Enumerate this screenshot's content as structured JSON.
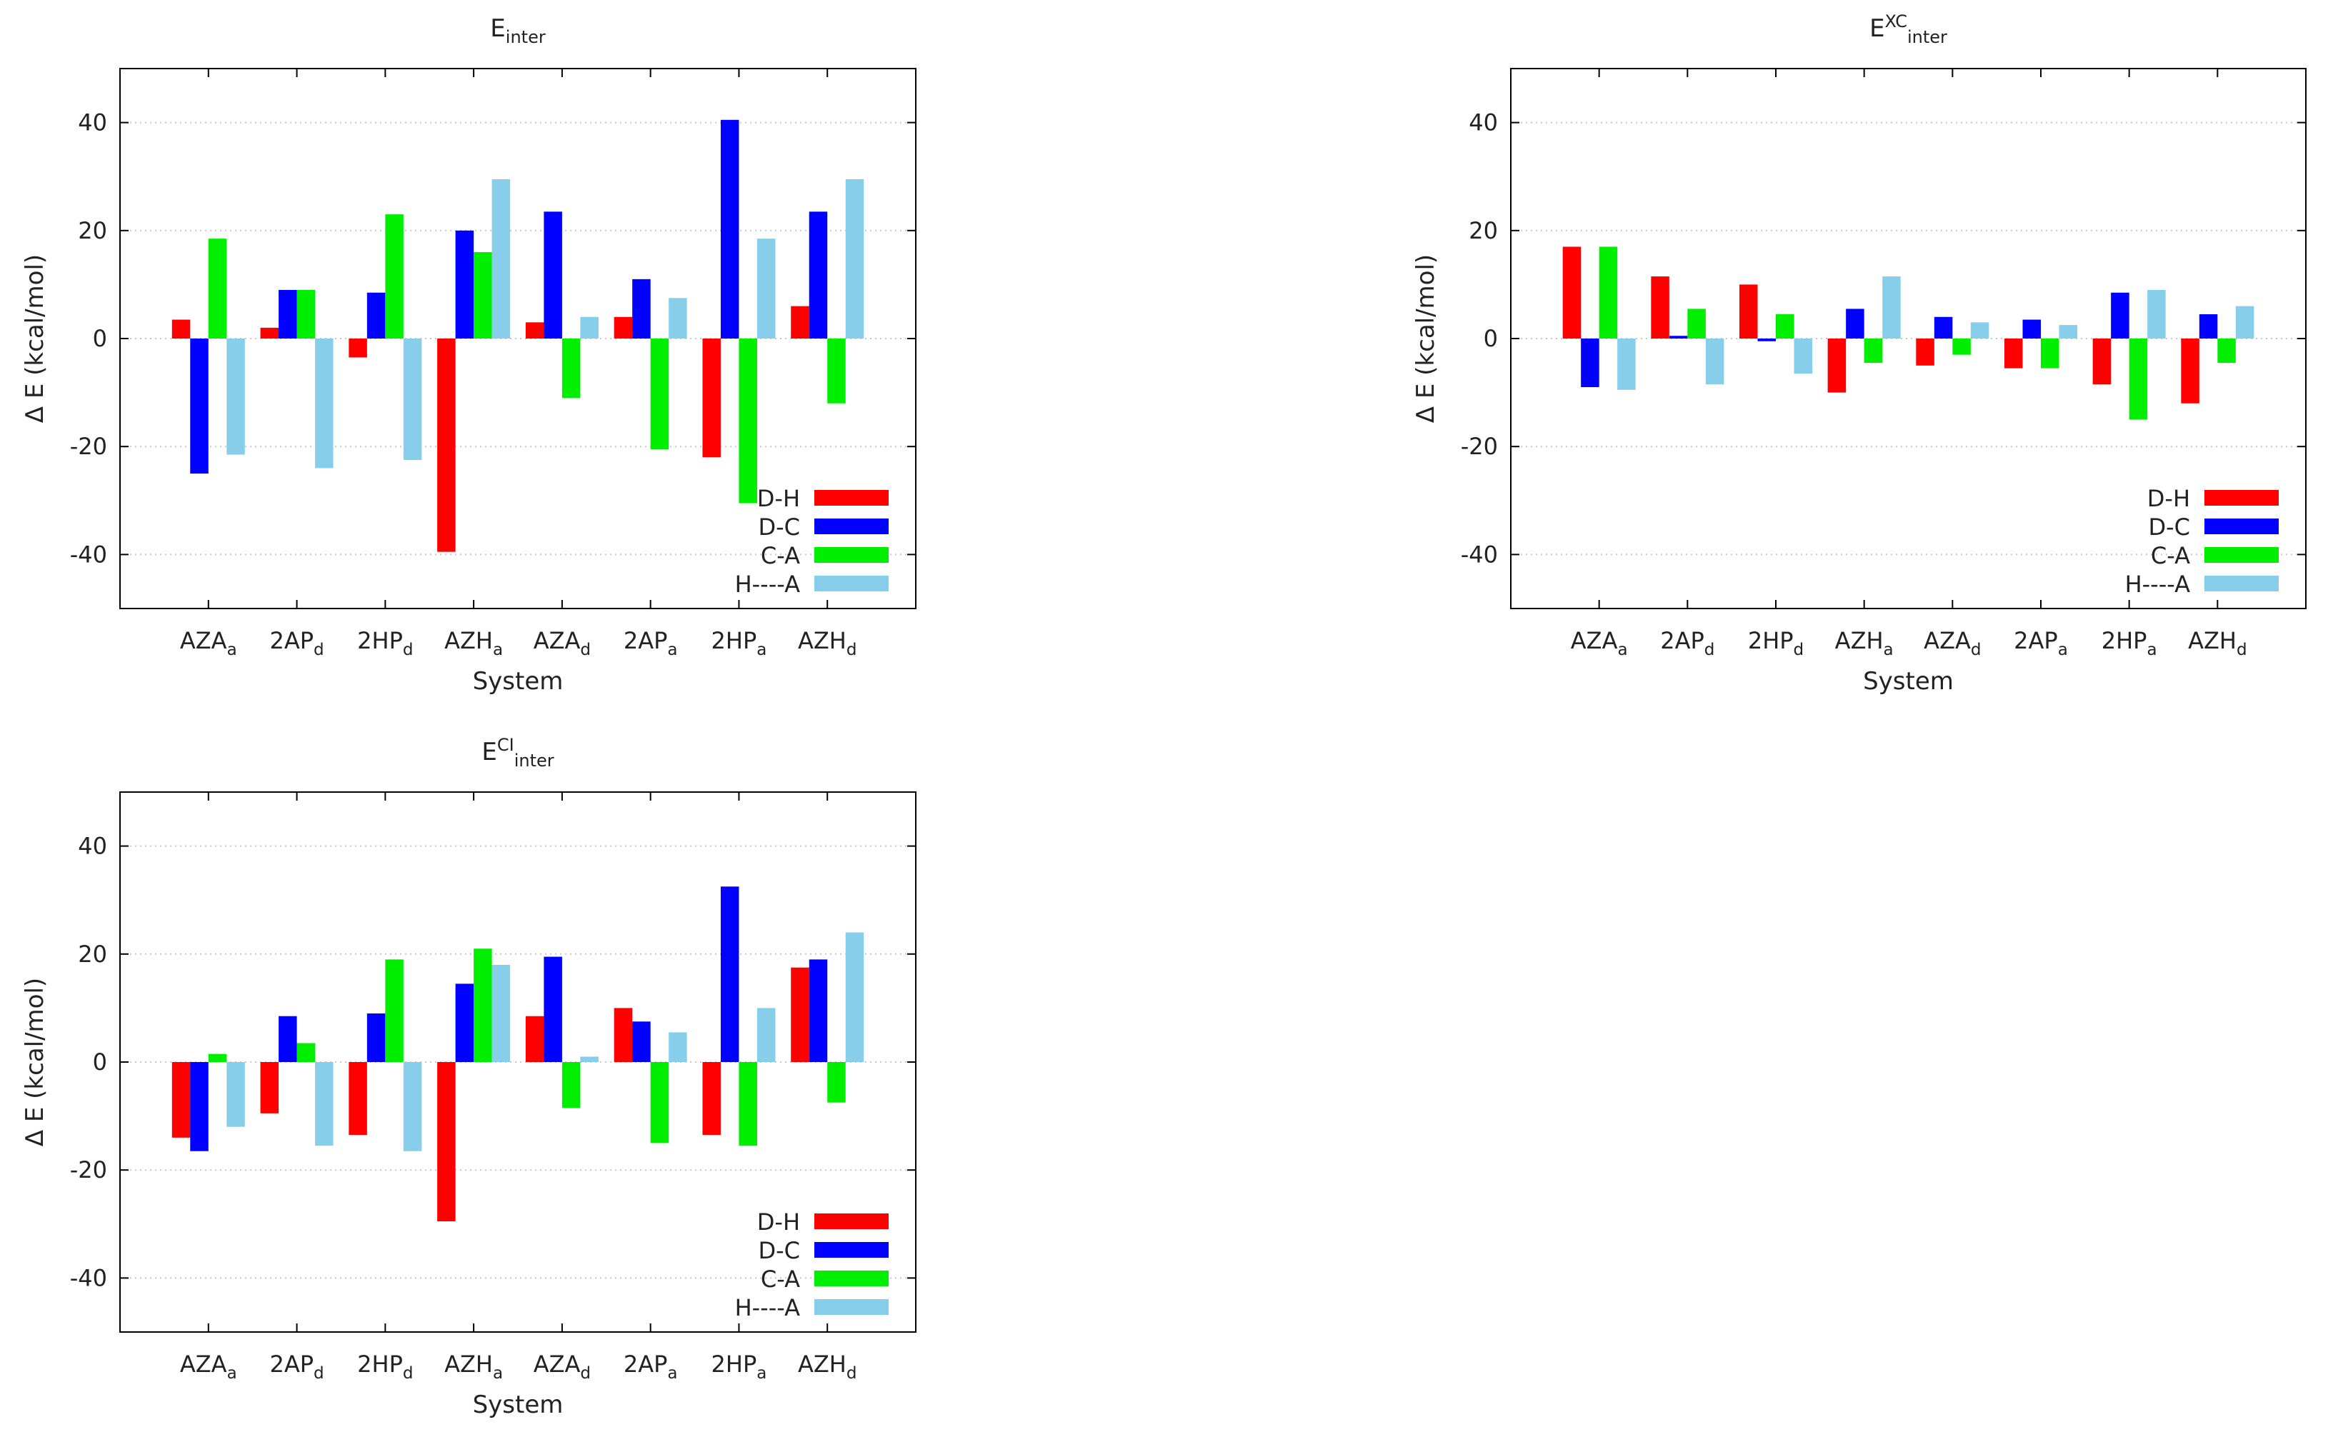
{
  "chart_data": [
    {
      "type": "bar",
      "title": {
        "main": "E",
        "sup": "",
        "sub": "inter"
      },
      "xlabel": "System",
      "ylabel": "Δ E (kcal/mol)",
      "ylim": [
        -50,
        50
      ],
      "yticks": [
        -40,
        -20,
        0,
        20,
        40
      ],
      "grid": true,
      "legend_position": "bottom-right",
      "categories": [
        {
          "main": "AZA",
          "sub": "a"
        },
        {
          "main": "2AP",
          "sub": "d"
        },
        {
          "main": "2HP",
          "sub": "d"
        },
        {
          "main": "AZH",
          "sub": "a"
        },
        {
          "main": "AZA",
          "sub": "d"
        },
        {
          "main": "2AP",
          "sub": "a"
        },
        {
          "main": "2HP",
          "sub": "a"
        },
        {
          "main": "AZH",
          "sub": "d"
        }
      ],
      "series": [
        {
          "name": "D-H",
          "color": "#ff0000",
          "values": [
            3.5,
            2.0,
            -3.5,
            -39.5,
            3.0,
            4.0,
            -22.0,
            6.0
          ]
        },
        {
          "name": "D-C",
          "color": "#0000ff",
          "values": [
            -25.0,
            9.0,
            8.5,
            20.0,
            23.5,
            11.0,
            40.5,
            23.5
          ]
        },
        {
          "name": "C-A",
          "color": "#00ee00",
          "values": [
            18.5,
            9.0,
            23.0,
            16.0,
            -11.0,
            -20.5,
            -30.5,
            -12.0
          ]
        },
        {
          "name": "H----A",
          "color": "#87ceeb",
          "values": [
            -21.5,
            -24.0,
            -22.5,
            29.5,
            4.0,
            7.5,
            18.5,
            29.5
          ]
        }
      ]
    },
    {
      "type": "bar",
      "title": {
        "main": "E",
        "sup": "XC",
        "sub": "inter"
      },
      "xlabel": "System",
      "ylabel": "Δ E (kcal/mol)",
      "ylim": [
        -50,
        50
      ],
      "yticks": [
        -40,
        -20,
        0,
        20,
        40
      ],
      "grid": true,
      "legend_position": "bottom-right",
      "categories": [
        {
          "main": "AZA",
          "sub": "a"
        },
        {
          "main": "2AP",
          "sub": "d"
        },
        {
          "main": "2HP",
          "sub": "d"
        },
        {
          "main": "AZH",
          "sub": "a"
        },
        {
          "main": "AZA",
          "sub": "d"
        },
        {
          "main": "2AP",
          "sub": "a"
        },
        {
          "main": "2HP",
          "sub": "a"
        },
        {
          "main": "AZH",
          "sub": "d"
        }
      ],
      "series": [
        {
          "name": "D-H",
          "color": "#ff0000",
          "values": [
            17.0,
            11.5,
            10.0,
            -10.0,
            -5.0,
            -5.5,
            -8.5,
            -12.0
          ]
        },
        {
          "name": "D-C",
          "color": "#0000ff",
          "values": [
            -9.0,
            0.5,
            -0.5,
            5.5,
            4.0,
            3.5,
            8.5,
            4.5
          ]
        },
        {
          "name": "C-A",
          "color": "#00ee00",
          "values": [
            17.0,
            5.5,
            4.5,
            -4.5,
            -3.0,
            -5.5,
            -15.0,
            -4.5
          ]
        },
        {
          "name": "H----A",
          "color": "#87ceeb",
          "values": [
            -9.5,
            -8.5,
            -6.5,
            11.5,
            3.0,
            2.5,
            9.0,
            6.0
          ]
        }
      ]
    },
    {
      "type": "bar",
      "title": {
        "main": "E",
        "sup": "CI",
        "sub": "inter"
      },
      "xlabel": "System",
      "ylabel": "Δ E (kcal/mol)",
      "ylim": [
        -50,
        50
      ],
      "yticks": [
        -40,
        -20,
        0,
        20,
        40
      ],
      "grid": true,
      "legend_position": "bottom-right",
      "categories": [
        {
          "main": "AZA",
          "sub": "a"
        },
        {
          "main": "2AP",
          "sub": "d"
        },
        {
          "main": "2HP",
          "sub": "d"
        },
        {
          "main": "AZH",
          "sub": "a"
        },
        {
          "main": "AZA",
          "sub": "d"
        },
        {
          "main": "2AP",
          "sub": "a"
        },
        {
          "main": "2HP",
          "sub": "a"
        },
        {
          "main": "AZH",
          "sub": "d"
        }
      ],
      "series": [
        {
          "name": "D-H",
          "color": "#ff0000",
          "values": [
            -14.0,
            -9.5,
            -13.5,
            -29.5,
            8.5,
            10.0,
            -13.5,
            17.5
          ]
        },
        {
          "name": "D-C",
          "color": "#0000ff",
          "values": [
            -16.5,
            8.5,
            9.0,
            14.5,
            19.5,
            7.5,
            32.5,
            19.0
          ]
        },
        {
          "name": "C-A",
          "color": "#00ee00",
          "values": [
            1.5,
            3.5,
            19.0,
            21.0,
            -8.5,
            -15.0,
            -15.5,
            -7.5
          ]
        },
        {
          "name": "H----A",
          "color": "#87ceeb",
          "values": [
            -12.0,
            -15.5,
            -16.5,
            18.0,
            1.0,
            5.5,
            10.0,
            24.0
          ]
        }
      ]
    }
  ]
}
